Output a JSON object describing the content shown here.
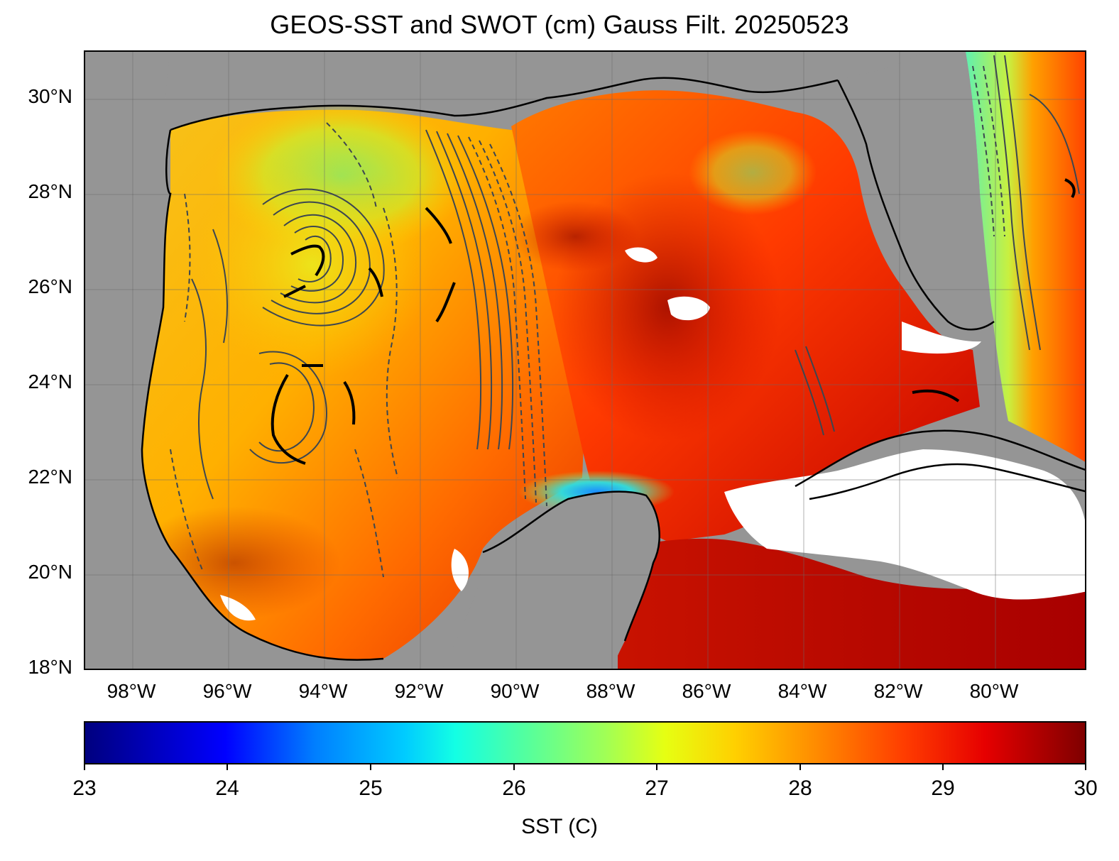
{
  "title": "GEOS-SST  and SWOT (cm) Gauss Filt. 20250523",
  "map": {
    "lat_labels": [
      "30°N",
      "28°N",
      "26°N",
      "24°N",
      "22°N",
      "20°N",
      "18°N"
    ],
    "lon_labels": [
      "98°W",
      "96°W",
      "94°W",
      "92°W",
      "90°W",
      "88°W",
      "86°W",
      "84°W",
      "82°W",
      "80°W"
    ],
    "land_color": "#959595",
    "missing_color": "#ffffff",
    "coastline_color": "#000000",
    "contour_color": "#3c4650",
    "grid": "on"
  },
  "colorbar": {
    "title": "SST (C)",
    "min": 23,
    "max": 30,
    "ticks": [
      "23",
      "24",
      "25",
      "26",
      "27",
      "28",
      "29",
      "30"
    ],
    "colormap": "jet"
  }
}
